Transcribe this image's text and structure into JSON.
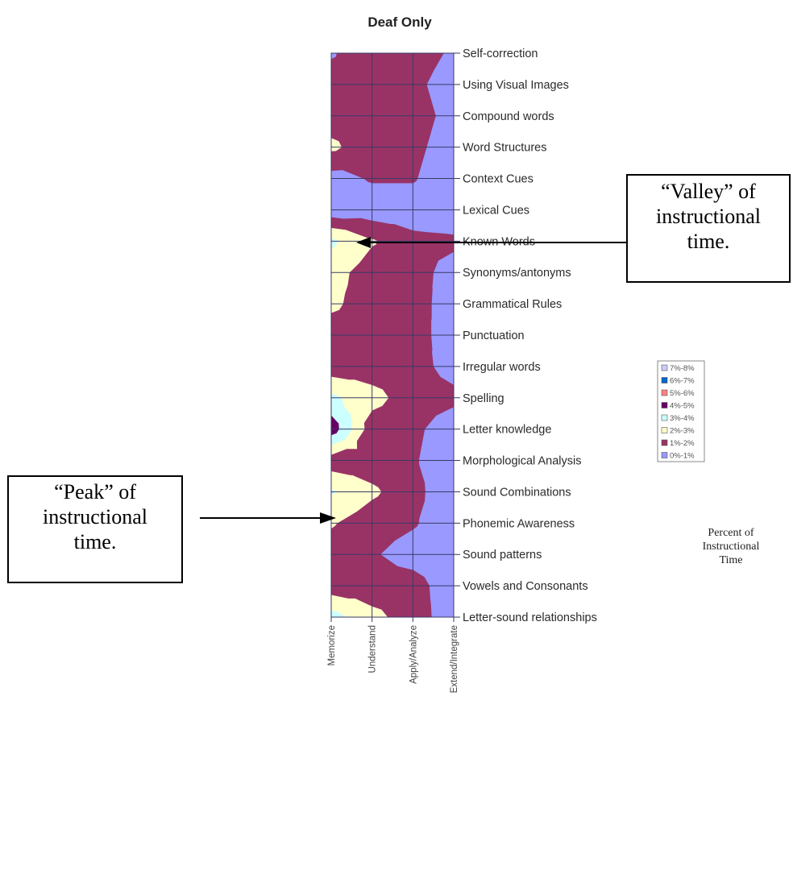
{
  "chart_data": {
    "type": "contour",
    "title": "Deaf Only",
    "x_categories": [
      "Memorize",
      "Understand",
      "Apply/Analyze",
      "Extend/Integrate"
    ],
    "y_categories": [
      "Self-correction",
      "Using Visual Images",
      "Compound words",
      "Word Structures",
      "Context Cues",
      "Lexical Cues",
      "Known Words",
      "Synonyms/antonyms",
      "Grammatical Rules",
      "Punctuation",
      "Irregular words",
      "Spelling",
      "Letter knowledge",
      "Morphological Analysis",
      "Sound Combinations",
      "Phonemic Awareness",
      "Sound patterns",
      "Vowels and Consonants",
      "Letter-sound relationships"
    ],
    "values_percent": [
      [
        0.9,
        1.6,
        1.6,
        0.8
      ],
      [
        1.4,
        1.4,
        1.3,
        0.4
      ],
      [
        1.5,
        1.5,
        1.5,
        0.6
      ],
      [
        2.2,
        1.4,
        1.3,
        0.4
      ],
      [
        0.6,
        1.1,
        1.1,
        0.2
      ],
      [
        0.3,
        0.4,
        0.4,
        0.2
      ],
      [
        3.2,
        2.1,
        1.3,
        1.2
      ],
      [
        2.4,
        1.5,
        1.4,
        0.6
      ],
      [
        2.2,
        1.5,
        1.5,
        0.4
      ],
      [
        1.5,
        1.5,
        1.4,
        0.5
      ],
      [
        1.4,
        1.4,
        1.3,
        0.7
      ],
      [
        3.2,
        2.4,
        1.4,
        1.2
      ],
      [
        4.6,
        1.4,
        1.2,
        0.5
      ],
      [
        1.4,
        1.4,
        1.1,
        0.4
      ],
      [
        3.1,
        2.2,
        1.3,
        0.3
      ],
      [
        2.1,
        1.4,
        1.1,
        0.4
      ],
      [
        1.5,
        1.1,
        0.6,
        0.3
      ],
      [
        1.4,
        1.4,
        1.4,
        0.4
      ],
      [
        3.4,
        2.3,
        1.5,
        0.4
      ]
    ],
    "legend": {
      "placement": "right",
      "caption_lines": [
        "Percent of",
        "Instructional",
        "Time"
      ],
      "entries": [
        {
          "label": "7%-8%",
          "color": "#ccccff"
        },
        {
          "label": "6%-7%",
          "color": "#0066cc"
        },
        {
          "label": "5%-6%",
          "color": "#ff8080"
        },
        {
          "label": "4%-5%",
          "color": "#660066"
        },
        {
          "label": "3%-4%",
          "color": "#ccffff"
        },
        {
          "label": "2%-3%",
          "color": "#ffffcc"
        },
        {
          "label": "1%-2%",
          "color": "#993366"
        },
        {
          "label": "0%-1%",
          "color": "#9999ff"
        }
      ]
    },
    "grid": true,
    "annotations": [
      {
        "id": "valley",
        "lines": [
          "“Valley” of",
          "instructional",
          "time."
        ],
        "target_row": "Lexical Cues",
        "target_col": "Understand"
      },
      {
        "id": "peak",
        "lines": [
          "“Peak” of",
          "instructional",
          "time."
        ],
        "target_row": "Letter knowledge",
        "target_col": "Memorize"
      }
    ]
  }
}
